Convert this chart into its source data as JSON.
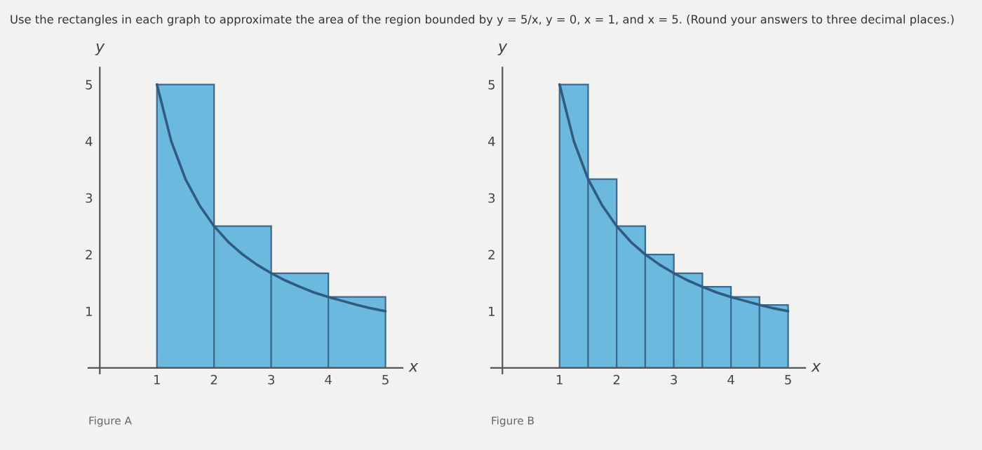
{
  "chart_data": [
    {
      "type": "bar",
      "title": "Use the rectangles in each graph to approximate the area of the region bounded by y = 5/x, y = 0, x = 1, and x = 5. (Round your answers to three decimal places.)",
      "xlabel": "x",
      "ylabel": "y",
      "annotations": [
        "Figure A"
      ],
      "xlim": [
        -0.2,
        5.3
      ],
      "ylim": [
        -0.1,
        5.3
      ],
      "xticks": [
        1,
        2,
        3,
        4,
        5
      ],
      "yticks": [
        1,
        2,
        3,
        4,
        5
      ],
      "grid": false,
      "series": [
        {
          "color": "#6cb9e0",
          "x": [
            1.5,
            2.5,
            3.5,
            4.5
          ],
          "values": [
            5,
            2.5,
            1.67,
            1.25
          ]
        },
        {
          "type": "line",
          "color": "#2f5c80",
          "x": [
            1,
            1.25,
            1.5,
            1.75,
            2,
            2.25,
            2.5,
            2.75,
            3,
            3.25,
            3.5,
            3.75,
            4,
            4.25,
            4.5,
            4.75,
            5
          ],
          "values": [
            5,
            4,
            3.33,
            2.86,
            2.5,
            2.22,
            2,
            1.82,
            1.67,
            1.54,
            1.43,
            1.33,
            1.25,
            1.18,
            1.11,
            1.05,
            1
          ]
        }
      ]
    },
    {
      "type": "bar",
      "xlabel": "x",
      "ylabel": "y",
      "annotations": [
        "Figure B"
      ],
      "xlim": [
        -0.2,
        5.3
      ],
      "ylim": [
        -0.1,
        5.3
      ],
      "xticks": [
        1,
        2,
        3,
        4,
        5
      ],
      "yticks": [
        1,
        2,
        3,
        4,
        5
      ],
      "grid": false,
      "series": [
        {
          "color": "#6cb9e0",
          "x": [
            1.25,
            1.75,
            2.25,
            2.75,
            3.25,
            3.75,
            4.25,
            4.75
          ],
          "values": [
            5,
            3.33,
            2.5,
            2,
            1.67,
            1.43,
            1.25,
            1.11
          ]
        },
        {
          "type": "line",
          "color": "#2f5c80",
          "x": [
            1,
            1.25,
            1.5,
            1.75,
            2,
            2.25,
            2.5,
            2.75,
            3,
            3.25,
            3.5,
            3.75,
            4,
            4.25,
            4.5,
            4.75,
            5
          ],
          "values": [
            5,
            4,
            3.33,
            2.86,
            2.5,
            2.22,
            2,
            1.82,
            1.67,
            1.54,
            1.43,
            1.33,
            1.25,
            1.18,
            1.11,
            1.05,
            1
          ]
        }
      ]
    }
  ]
}
